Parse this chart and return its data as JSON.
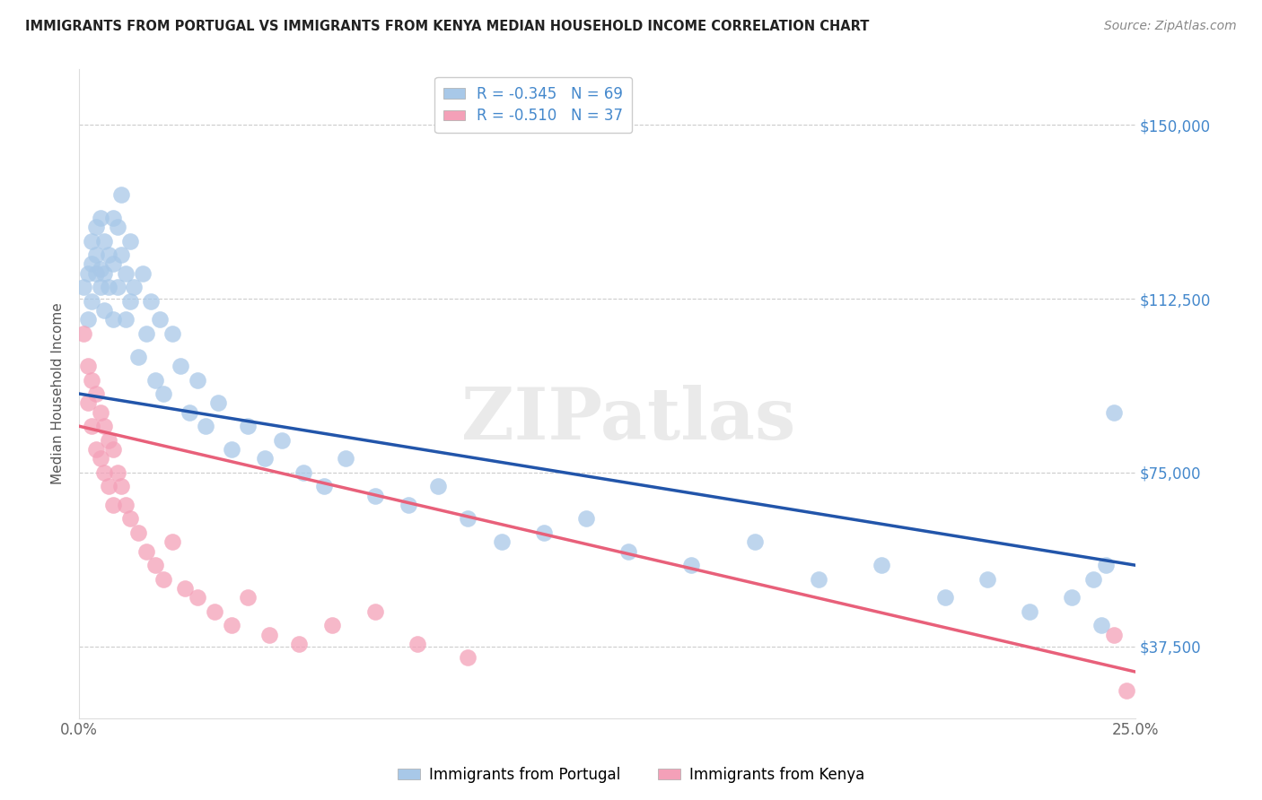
{
  "title": "IMMIGRANTS FROM PORTUGAL VS IMMIGRANTS FROM KENYA MEDIAN HOUSEHOLD INCOME CORRELATION CHART",
  "source": "Source: ZipAtlas.com",
  "ylabel": "Median Household Income",
  "yticks": [
    37500,
    75000,
    112500,
    150000
  ],
  "ytick_labels": [
    "$37,500",
    "$75,000",
    "$112,500",
    "$150,000"
  ],
  "legend_label1": "Immigrants from Portugal",
  "legend_label2": "Immigrants from Kenya",
  "legend_r1": "-0.345",
  "legend_n1": "69",
  "legend_r2": "-0.510",
  "legend_n2": "37",
  "watermark": "ZIPatlas",
  "xlim": [
    0.0,
    0.25
  ],
  "ylim": [
    22000,
    162000
  ],
  "blue_color": "#a8c8e8",
  "pink_color": "#f4a0b8",
  "blue_line_color": "#2255aa",
  "pink_line_color": "#e8607a",
  "blue_scatter_x": [
    0.001,
    0.002,
    0.002,
    0.003,
    0.003,
    0.003,
    0.004,
    0.004,
    0.004,
    0.005,
    0.005,
    0.005,
    0.006,
    0.006,
    0.006,
    0.007,
    0.007,
    0.008,
    0.008,
    0.008,
    0.009,
    0.009,
    0.01,
    0.01,
    0.011,
    0.011,
    0.012,
    0.012,
    0.013,
    0.014,
    0.015,
    0.016,
    0.017,
    0.018,
    0.019,
    0.02,
    0.022,
    0.024,
    0.026,
    0.028,
    0.03,
    0.033,
    0.036,
    0.04,
    0.044,
    0.048,
    0.053,
    0.058,
    0.063,
    0.07,
    0.078,
    0.085,
    0.092,
    0.1,
    0.11,
    0.12,
    0.13,
    0.145,
    0.16,
    0.175,
    0.19,
    0.205,
    0.215,
    0.225,
    0.235,
    0.24,
    0.242,
    0.243,
    0.245
  ],
  "blue_scatter_y": [
    115000,
    118000,
    108000,
    120000,
    125000,
    112000,
    118000,
    128000,
    122000,
    119000,
    130000,
    115000,
    125000,
    118000,
    110000,
    122000,
    115000,
    130000,
    120000,
    108000,
    128000,
    115000,
    122000,
    135000,
    118000,
    108000,
    125000,
    112000,
    115000,
    100000,
    118000,
    105000,
    112000,
    95000,
    108000,
    92000,
    105000,
    98000,
    88000,
    95000,
    85000,
    90000,
    80000,
    85000,
    78000,
    82000,
    75000,
    72000,
    78000,
    70000,
    68000,
    72000,
    65000,
    60000,
    62000,
    65000,
    58000,
    55000,
    60000,
    52000,
    55000,
    48000,
    52000,
    45000,
    48000,
    52000,
    42000,
    55000,
    88000
  ],
  "pink_scatter_x": [
    0.001,
    0.002,
    0.002,
    0.003,
    0.003,
    0.004,
    0.004,
    0.005,
    0.005,
    0.006,
    0.006,
    0.007,
    0.007,
    0.008,
    0.008,
    0.009,
    0.01,
    0.011,
    0.012,
    0.014,
    0.016,
    0.018,
    0.02,
    0.022,
    0.025,
    0.028,
    0.032,
    0.036,
    0.04,
    0.045,
    0.052,
    0.06,
    0.07,
    0.08,
    0.092,
    0.245,
    0.248
  ],
  "pink_scatter_y": [
    105000,
    98000,
    90000,
    95000,
    85000,
    92000,
    80000,
    88000,
    78000,
    85000,
    75000,
    82000,
    72000,
    80000,
    68000,
    75000,
    72000,
    68000,
    65000,
    62000,
    58000,
    55000,
    52000,
    60000,
    50000,
    48000,
    45000,
    42000,
    48000,
    40000,
    38000,
    42000,
    45000,
    38000,
    35000,
    40000,
    28000
  ]
}
